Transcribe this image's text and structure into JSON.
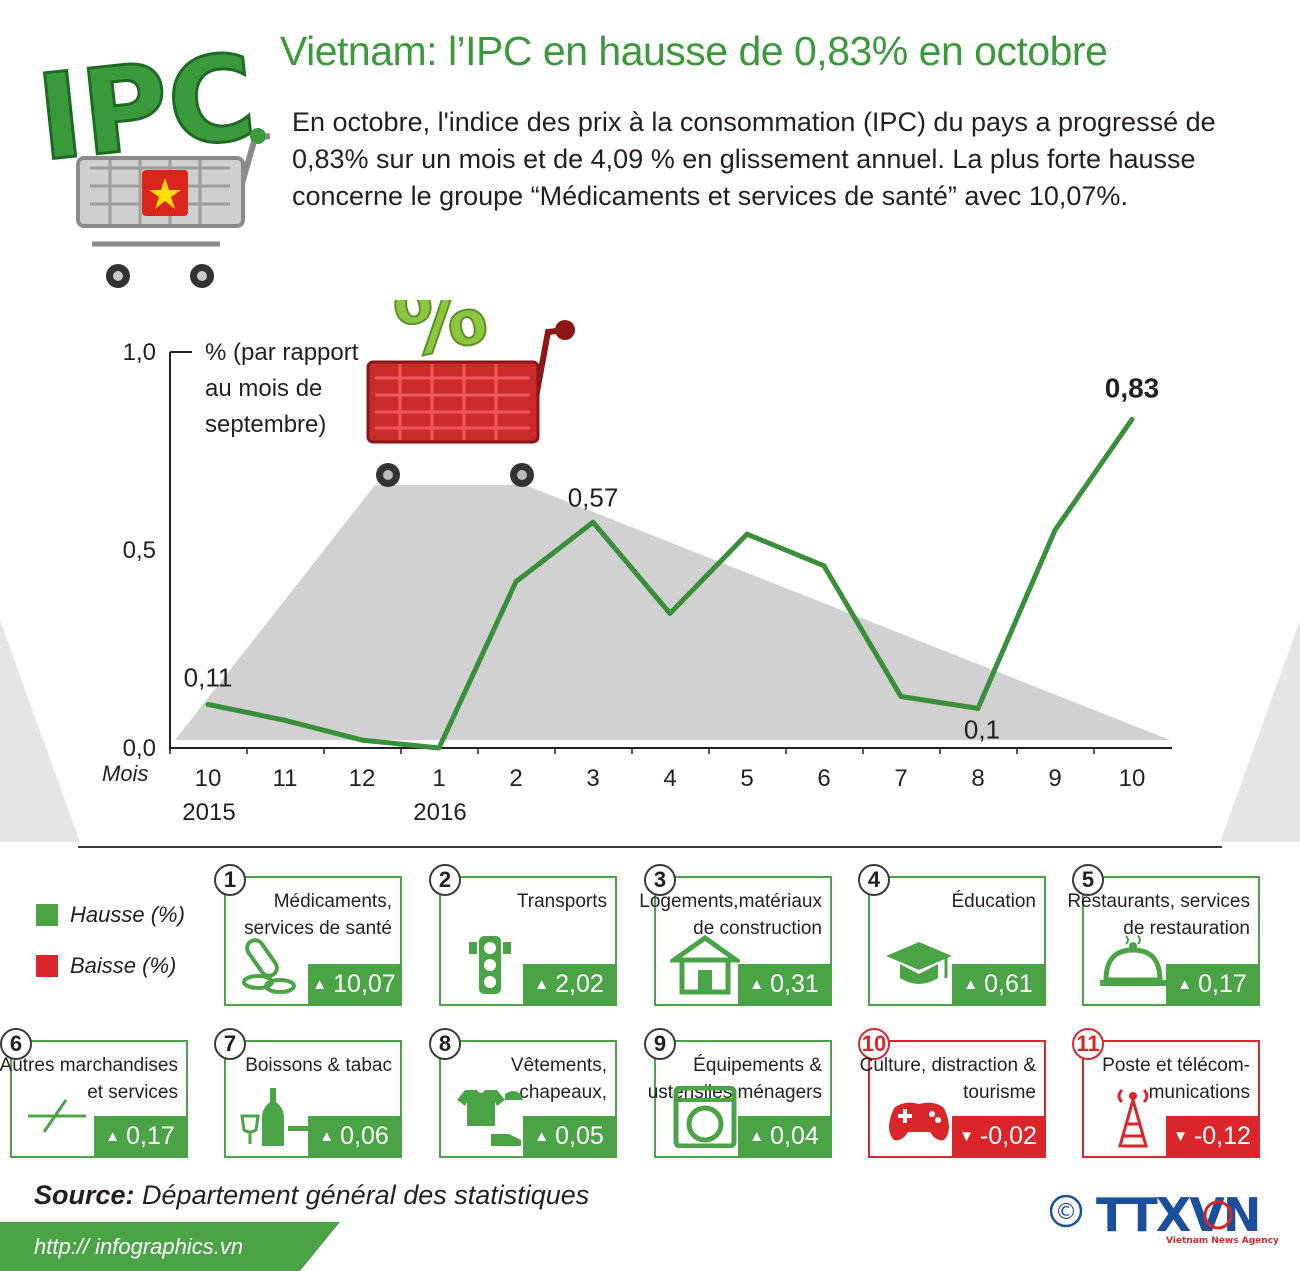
{
  "header": {
    "logo_text": "IPC",
    "title": "Vietnam: l’IPC en hausse de 0,83% en octobre",
    "intro": "En octobre, l'indice des prix à la consommation (IPC) du pays a progressé de 0,83% sur un mois et de 4,09 % en glissement annuel. La plus forte hausse concerne le groupe “Médicaments et services de santé” avec 10,07%."
  },
  "chart_data": {
    "type": "line",
    "ylabel_lines": [
      "% (par rapport",
      "au mois de",
      "septembre)"
    ],
    "xlabel": "Mois",
    "ylim": [
      0,
      1.0
    ],
    "yticks": [
      "1,0",
      "0,5",
      "0,0"
    ],
    "ytick_values": [
      1.0,
      0.5,
      0.0
    ],
    "categories": [
      "10",
      "11",
      "12",
      "1",
      "2",
      "3",
      "4",
      "5",
      "6",
      "7",
      "8",
      "9",
      "10"
    ],
    "year_labels": [
      {
        "index": 0,
        "label": "2015"
      },
      {
        "index": 3,
        "label": "2016"
      }
    ],
    "series": [
      {
        "values": [
          0.11,
          0.07,
          0.02,
          0.0,
          0.42,
          0.57,
          0.34,
          0.54,
          0.46,
          0.13,
          0.1,
          0.55,
          0.83
        ]
      }
    ],
    "data_labels": [
      {
        "index": 0,
        "text": "0,11"
      },
      {
        "index": 5,
        "text": "0,57"
      },
      {
        "index": 10,
        "text": "0,1"
      },
      {
        "index": 12,
        "text": "0,83"
      }
    ],
    "line_color": "#3a8f3a",
    "grid": false,
    "overlay_icon": "percent-cart-icon"
  },
  "legend": {
    "items": [
      {
        "label": "Hausse (%)",
        "color": "#4aa446"
      },
      {
        "label": "Baisse (%)",
        "color": "#d9262a"
      }
    ]
  },
  "categories": [
    {
      "num": "1",
      "label": "Médicaments, services de santé",
      "value": "10,07",
      "direction": "up",
      "icon": "medicine-icon"
    },
    {
      "num": "2",
      "label": "Transports",
      "value": "2,02",
      "direction": "up",
      "icon": "traffic-light-icon"
    },
    {
      "num": "3",
      "label": "Logements,matériaux de construction",
      "value": "0,31",
      "direction": "up",
      "icon": "house-icon"
    },
    {
      "num": "4",
      "label": "Éducation",
      "value": "0,61",
      "direction": "up",
      "icon": "graduation-cap-icon"
    },
    {
      "num": "5",
      "label": "Restaurants, services de restauration",
      "value": "0,17",
      "direction": "up",
      "icon": "cloche-icon"
    },
    {
      "num": "6",
      "label": "Autres marchandises et services",
      "value": "0,17",
      "direction": "up",
      "icon": "misc-icon"
    },
    {
      "num": "7",
      "label": "Boissons & tabac",
      "value": "0,06",
      "direction": "up",
      "icon": "bottle-cigarette-icon"
    },
    {
      "num": "8",
      "label": "Vêtements, chapeaux, chaussures",
      "value": "0,05",
      "direction": "up",
      "icon": "clothing-icon"
    },
    {
      "num": "9",
      "label": "Équipements & ustensiles ménagers",
      "value": "0,04",
      "direction": "up",
      "icon": "washing-machine-icon"
    },
    {
      "num": "10",
      "label": "Culture, distraction & tourisme",
      "value": "-0,02",
      "direction": "down",
      "icon": "gamepad-icon"
    },
    {
      "num": "11",
      "label": "Poste et télécom-munications",
      "value": "-0,12",
      "direction": "down",
      "icon": "antenna-icon"
    }
  ],
  "colors": {
    "up": "#4aa446",
    "down": "#d9262a",
    "title": "#3a9a3b"
  },
  "footer": {
    "source_label": "Source:",
    "source_text": "Département général des statistiques",
    "url": "http:// infographics.vn",
    "copyright": "©",
    "agency_logo": "TTXVN",
    "agency_sub": "Vietnam News Agency"
  }
}
